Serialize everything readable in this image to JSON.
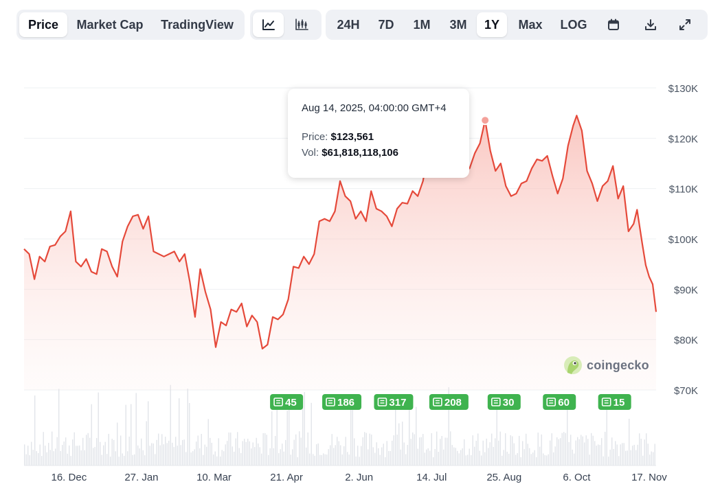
{
  "toolbar": {
    "views": [
      {
        "label": "Price",
        "active": true
      },
      {
        "label": "Market Cap",
        "active": false
      },
      {
        "label": "TradingView",
        "active": false
      }
    ],
    "chart_types": [
      {
        "icon": "line-chart-icon",
        "active": true
      },
      {
        "icon": "candlestick-icon",
        "active": false
      }
    ],
    "ranges": [
      {
        "label": "24H",
        "active": false
      },
      {
        "label": "7D",
        "active": false
      },
      {
        "label": "1M",
        "active": false
      },
      {
        "label": "3M",
        "active": false
      },
      {
        "label": "1Y",
        "active": true
      },
      {
        "label": "Max",
        "active": false
      },
      {
        "label": "LOG",
        "active": false
      }
    ],
    "actions": [
      "calendar-icon",
      "download-icon",
      "fullscreen-icon"
    ]
  },
  "tooltip": {
    "date": "Aug 14, 2025, 04:00:00 GMT+4",
    "price_label": "Price:",
    "price_value": "$123,561",
    "vol_label": "Vol:",
    "vol_value": "$61,818,118,106"
  },
  "watermark": "coingecko",
  "colors": {
    "line": "#e5493a",
    "fill_top": "#f8b4ac",
    "news_badge": "#3fb34f",
    "grid": "#eef0f3"
  },
  "chart_data": {
    "type": "area",
    "title": "",
    "xlabel": "",
    "ylabel": "",
    "ylim": [
      70000,
      130000
    ],
    "y_ticks": [
      70000,
      80000,
      90000,
      100000,
      110000,
      120000,
      130000
    ],
    "y_tick_labels": [
      "$70K",
      "$80K",
      "$90K",
      "$100K",
      "$110K",
      "$120K",
      "$130K"
    ],
    "x_tick_labels": [
      "16. Dec",
      "27. Jan",
      "10. Mar",
      "21. Apr",
      "2. Jun",
      "14. Jul",
      "25. Aug",
      "6. Oct",
      "17. Nov"
    ],
    "x_tick_dates": [
      "2024-12-16",
      "2025-01-27",
      "2025-03-10",
      "2025-04-21",
      "2025-06-02",
      "2025-07-14",
      "2025-08-25",
      "2025-10-06",
      "2025-11-17"
    ],
    "x_range": [
      "2024-11-20",
      "2025-11-21"
    ],
    "series": [
      {
        "points": [
          [
            "2024-11-20",
            98000
          ],
          [
            "2024-11-23",
            97000
          ],
          [
            "2024-11-26",
            92000
          ],
          [
            "2024-11-29",
            96500
          ],
          [
            "2024-12-02",
            95500
          ],
          [
            "2024-12-05",
            98500
          ],
          [
            "2024-12-08",
            98800
          ],
          [
            "2024-12-11",
            100500
          ],
          [
            "2024-12-14",
            101500
          ],
          [
            "2024-12-17",
            105500
          ],
          [
            "2024-12-20",
            95500
          ],
          [
            "2024-12-23",
            94500
          ],
          [
            "2024-12-26",
            96000
          ],
          [
            "2024-12-29",
            93500
          ],
          [
            "2025-01-01",
            93000
          ],
          [
            "2025-01-04",
            98000
          ],
          [
            "2025-01-07",
            97500
          ],
          [
            "2025-01-10",
            94500
          ],
          [
            "2025-01-13",
            92500
          ],
          [
            "2025-01-16",
            99500
          ],
          [
            "2025-01-19",
            102500
          ],
          [
            "2025-01-22",
            104500
          ],
          [
            "2025-01-25",
            104800
          ],
          [
            "2025-01-28",
            102000
          ],
          [
            "2025-01-31",
            104500
          ],
          [
            "2025-02-03",
            97500
          ],
          [
            "2025-02-06",
            97000
          ],
          [
            "2025-02-09",
            96500
          ],
          [
            "2025-02-12",
            97000
          ],
          [
            "2025-02-15",
            97500
          ],
          [
            "2025-02-18",
            95500
          ],
          [
            "2025-02-21",
            97000
          ],
          [
            "2025-02-24",
            91500
          ],
          [
            "2025-02-27",
            84500
          ],
          [
            "2025-03-02",
            94000
          ],
          [
            "2025-03-05",
            89500
          ],
          [
            "2025-03-08",
            86000
          ],
          [
            "2025-03-11",
            78500
          ],
          [
            "2025-03-14",
            83500
          ],
          [
            "2025-03-17",
            82800
          ],
          [
            "2025-03-20",
            86000
          ],
          [
            "2025-03-23",
            85500
          ],
          [
            "2025-03-26",
            87200
          ],
          [
            "2025-03-29",
            82600
          ],
          [
            "2025-04-01",
            84800
          ],
          [
            "2025-04-04",
            83500
          ],
          [
            "2025-04-07",
            78200
          ],
          [
            "2025-04-10",
            79000
          ],
          [
            "2025-04-13",
            84500
          ],
          [
            "2025-04-16",
            84000
          ],
          [
            "2025-04-19",
            85000
          ],
          [
            "2025-04-22",
            88000
          ],
          [
            "2025-04-25",
            94500
          ],
          [
            "2025-04-28",
            94200
          ],
          [
            "2025-05-01",
            96500
          ],
          [
            "2025-05-04",
            95000
          ],
          [
            "2025-05-07",
            97000
          ],
          [
            "2025-05-10",
            103500
          ],
          [
            "2025-05-13",
            104000
          ],
          [
            "2025-05-16",
            103500
          ],
          [
            "2025-05-19",
            105500
          ],
          [
            "2025-05-22",
            111500
          ],
          [
            "2025-05-25",
            108500
          ],
          [
            "2025-05-28",
            107500
          ],
          [
            "2025-05-31",
            104000
          ],
          [
            "2025-06-03",
            105500
          ],
          [
            "2025-06-06",
            103500
          ],
          [
            "2025-06-09",
            109500
          ],
          [
            "2025-06-12",
            106000
          ],
          [
            "2025-06-15",
            105500
          ],
          [
            "2025-06-18",
            104500
          ],
          [
            "2025-06-21",
            102500
          ],
          [
            "2025-06-24",
            106000
          ],
          [
            "2025-06-27",
            107200
          ],
          [
            "2025-06-30",
            107000
          ],
          [
            "2025-07-03",
            109500
          ],
          [
            "2025-07-06",
            108500
          ],
          [
            "2025-07-09",
            111500
          ],
          [
            "2025-07-12",
            117500
          ],
          [
            "2025-07-15",
            117000
          ],
          [
            "2025-07-18",
            118000
          ],
          [
            "2025-07-21",
            117500
          ],
          [
            "2025-07-24",
            118500
          ],
          [
            "2025-07-27",
            119000
          ],
          [
            "2025-07-30",
            117500
          ],
          [
            "2025-08-02",
            113500
          ],
          [
            "2025-08-05",
            114000
          ],
          [
            "2025-08-08",
            117000
          ],
          [
            "2025-08-11",
            119000
          ],
          [
            "2025-08-14",
            123561
          ],
          [
            "2025-08-17",
            117500
          ],
          [
            "2025-08-20",
            113500
          ],
          [
            "2025-08-23",
            115000
          ],
          [
            "2025-08-26",
            110500
          ],
          [
            "2025-08-29",
            108500
          ],
          [
            "2025-09-01",
            109000
          ],
          [
            "2025-09-04",
            111000
          ],
          [
            "2025-09-07",
            111500
          ],
          [
            "2025-09-10",
            114000
          ],
          [
            "2025-09-13",
            115800
          ],
          [
            "2025-09-16",
            115500
          ],
          [
            "2025-09-19",
            116500
          ],
          [
            "2025-09-22",
            112500
          ],
          [
            "2025-09-25",
            109000
          ],
          [
            "2025-09-28",
            112000
          ],
          [
            "2025-10-01",
            118500
          ],
          [
            "2025-10-04",
            122500
          ],
          [
            "2025-10-06",
            124500
          ],
          [
            "2025-10-09",
            121500
          ],
          [
            "2025-10-12",
            113500
          ],
          [
            "2025-10-15",
            111000
          ],
          [
            "2025-10-18",
            107500
          ],
          [
            "2025-10-21",
            110500
          ],
          [
            "2025-10-24",
            111500
          ],
          [
            "2025-10-27",
            114500
          ],
          [
            "2025-10-30",
            108000
          ],
          [
            "2025-11-02",
            110500
          ],
          [
            "2025-11-05",
            101500
          ],
          [
            "2025-11-08",
            103000
          ],
          [
            "2025-11-10",
            105800
          ],
          [
            "2025-11-13",
            99000
          ],
          [
            "2025-11-15",
            94800
          ],
          [
            "2025-11-17",
            92500
          ],
          [
            "2025-11-19",
            91000
          ],
          [
            "2025-11-21",
            85500
          ]
        ]
      }
    ],
    "highlight": {
      "date": "2025-08-14",
      "value": 123561
    },
    "news_markers": [
      {
        "date": "2025-04-21",
        "count": 45
      },
      {
        "date": "2025-05-23",
        "count": 186
      },
      {
        "date": "2025-06-22",
        "count": 317
      },
      {
        "date": "2025-07-24",
        "count": 208
      },
      {
        "date": "2025-08-25",
        "count": 30
      },
      {
        "date": "2025-09-26",
        "count": 60
      },
      {
        "date": "2025-10-28",
        "count": 15
      }
    ],
    "grid": true,
    "legend": "none",
    "volume_panel": true
  }
}
